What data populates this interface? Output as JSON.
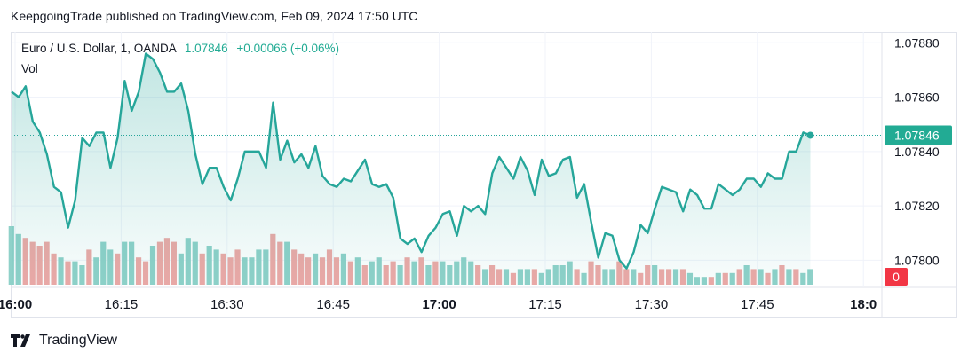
{
  "header": {
    "published": "KeepgoingTrade published on TradingView.com, Feb 09, 2024 17:50 UTC"
  },
  "legend": {
    "symbol": "Euro / U.S. Dollar, 1, OANDA",
    "last": "1.07846",
    "change": "+0.00066 (+0.06%)",
    "volume_label": "Vol"
  },
  "footer": {
    "brand": "TradingView"
  },
  "colors": {
    "line": "#26a69a",
    "up_volume": "#8fd1c9",
    "down_volume": "#eea8a6",
    "price_badge": "#22ab94",
    "volume_badge": "#f23645"
  },
  "chart_data": {
    "type": "area",
    "y_ticks": [
      "1.07880",
      "1.07860",
      "1.07840",
      "1.07820",
      "1.07800"
    ],
    "y_range": [
      1.07791,
      1.07884
    ],
    "x_ticks": [
      {
        "label": "16:00",
        "bold": true
      },
      {
        "label": "16:15",
        "bold": false
      },
      {
        "label": "16:30",
        "bold": false
      },
      {
        "label": "16:45",
        "bold": false
      },
      {
        "label": "17:00",
        "bold": true
      },
      {
        "label": "17:15",
        "bold": false
      },
      {
        "label": "17:30",
        "bold": false
      },
      {
        "label": "17:45",
        "bold": false
      },
      {
        "label": "18:0",
        "bold": true
      }
    ],
    "last_price_label": "1.07846",
    "volume_label_value": "0",
    "series": [
      {
        "values": [
          1.07862,
          1.0786,
          1.07864,
          1.07851,
          1.07847,
          1.07839,
          1.07827,
          1.07825,
          1.07812,
          1.07822,
          1.07845,
          1.07842,
          1.07847,
          1.07847,
          1.07834,
          1.07845,
          1.07866,
          1.07855,
          1.07862,
          1.07876,
          1.07874,
          1.07869,
          1.07862,
          1.07862,
          1.07865,
          1.07855,
          1.07839,
          1.07828,
          1.07834,
          1.07834,
          1.07827,
          1.07822,
          1.0783,
          1.0784,
          1.0784,
          1.0784,
          1.07834,
          1.07858,
          1.07837,
          1.07844,
          1.07836,
          1.07839,
          1.07834,
          1.07842,
          1.07831,
          1.07828,
          1.07827,
          1.0783,
          1.07829,
          1.07833,
          1.07837,
          1.07828,
          1.07827,
          1.07828,
          1.07823,
          1.07808,
          1.07806,
          1.07808,
          1.07803,
          1.07809,
          1.07812,
          1.07817,
          1.07818,
          1.07809,
          1.0782,
          1.07818,
          1.0782,
          1.07817,
          1.07832,
          1.07838,
          1.07834,
          1.0783,
          1.07838,
          1.07833,
          1.07824,
          1.07837,
          1.07831,
          1.07832,
          1.07837,
          1.07838,
          1.07823,
          1.07828,
          1.07814,
          1.07801,
          1.0781,
          1.07809,
          1.078,
          1.07797,
          1.07803,
          1.07813,
          1.0781,
          1.07819,
          1.07827,
          1.07826,
          1.07825,
          1.07818,
          1.07826,
          1.07824,
          1.07819,
          1.07819,
          1.07828,
          1.07826,
          1.07824,
          1.07826,
          1.0783,
          1.0783,
          1.07827,
          1.07832,
          1.0783,
          1.0783,
          1.0784,
          1.0784,
          1.07847,
          1.07846
        ],
        "volumes": [
          [
            15,
            0
          ],
          [
            13,
            0
          ],
          [
            12,
            1
          ],
          [
            11,
            1
          ],
          [
            10,
            1
          ],
          [
            11,
            1
          ],
          [
            8,
            1
          ],
          [
            7,
            0
          ],
          [
            6,
            1
          ],
          [
            6,
            0
          ],
          [
            5,
            0
          ],
          [
            9,
            1
          ],
          [
            7,
            0
          ],
          [
            11,
            0
          ],
          [
            9,
            0
          ],
          [
            8,
            1
          ],
          [
            11,
            0
          ],
          [
            11,
            0
          ],
          [
            7,
            1
          ],
          [
            6,
            1
          ],
          [
            10,
            0
          ],
          [
            11,
            1
          ],
          [
            12,
            1
          ],
          [
            11,
            1
          ],
          [
            8,
            0
          ],
          [
            12,
            0
          ],
          [
            11,
            0
          ],
          [
            8,
            1
          ],
          [
            10,
            0
          ],
          [
            9,
            0
          ],
          [
            8,
            1
          ],
          [
            7,
            1
          ],
          [
            9,
            1
          ],
          [
            7,
            0
          ],
          [
            7,
            0
          ],
          [
            9,
            0
          ],
          [
            9,
            0
          ],
          [
            13,
            1
          ],
          [
            11,
            1
          ],
          [
            11,
            0
          ],
          [
            9,
            1
          ],
          [
            8,
            1
          ],
          [
            7,
            1
          ],
          [
            8,
            0
          ],
          [
            7,
            1
          ],
          [
            9,
            1
          ],
          [
            7,
            1
          ],
          [
            8,
            0
          ],
          [
            6,
            1
          ],
          [
            7,
            0
          ],
          [
            5,
            1
          ],
          [
            6,
            0
          ],
          [
            7,
            0
          ],
          [
            5,
            1
          ],
          [
            6,
            1
          ],
          [
            5,
            0
          ],
          [
            7,
            1
          ],
          [
            6,
            0
          ],
          [
            7,
            1
          ],
          [
            5,
            0
          ],
          [
            6,
            1
          ],
          [
            6,
            0
          ],
          [
            5,
            0
          ],
          [
            6,
            0
          ],
          [
            7,
            0
          ],
          [
            6,
            0
          ],
          [
            5,
            1
          ],
          [
            4,
            0
          ],
          [
            5,
            1
          ],
          [
            4,
            1
          ],
          [
            4,
            0
          ],
          [
            3,
            1
          ],
          [
            4,
            0
          ],
          [
            4,
            0
          ],
          [
            4,
            1
          ],
          [
            3,
            0
          ],
          [
            4,
            0
          ],
          [
            5,
            0
          ],
          [
            5,
            0
          ],
          [
            6,
            0
          ],
          [
            4,
            1
          ],
          [
            3,
            0
          ],
          [
            6,
            1
          ],
          [
            5,
            1
          ],
          [
            4,
            0
          ],
          [
            4,
            0
          ],
          [
            6,
            1
          ],
          [
            4,
            1
          ],
          [
            4,
            0
          ],
          [
            3,
            1
          ],
          [
            5,
            1
          ],
          [
            5,
            0
          ],
          [
            4,
            1
          ],
          [
            4,
            1
          ],
          [
            4,
            0
          ],
          [
            4,
            1
          ],
          [
            3,
            0
          ],
          [
            2,
            0
          ],
          [
            2,
            0
          ],
          [
            2,
            1
          ],
          [
            3,
            0
          ],
          [
            3,
            1
          ],
          [
            3,
            0
          ],
          [
            4,
            1
          ],
          [
            5,
            0
          ],
          [
            4,
            1
          ],
          [
            4,
            0
          ],
          [
            3,
            1
          ],
          [
            4,
            0
          ],
          [
            5,
            1
          ],
          [
            4,
            0
          ],
          [
            4,
            1
          ],
          [
            3,
            0
          ],
          [
            4,
            0
          ]
        ]
      }
    ]
  }
}
